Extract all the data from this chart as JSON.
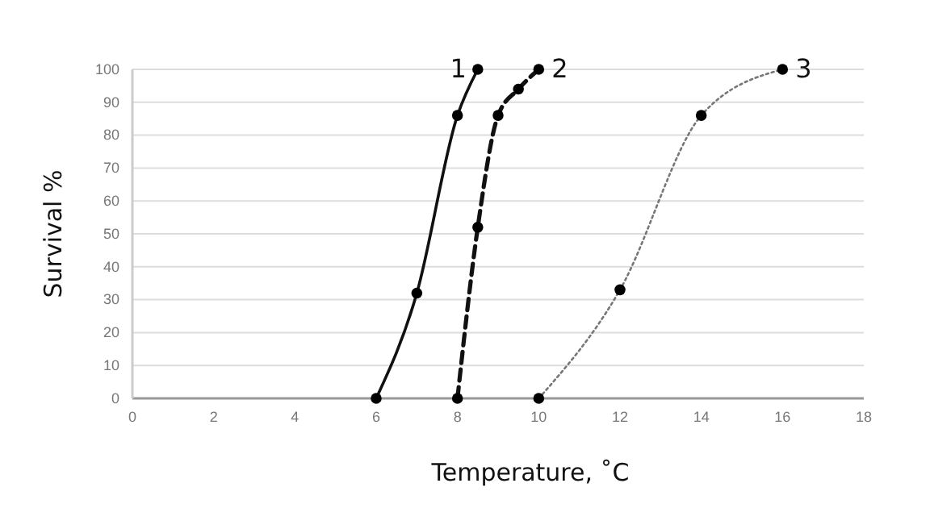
{
  "chart_data": {
    "type": "line",
    "xlabel": "Temperature, ˚C",
    "ylabel": "Survival %",
    "xlim": [
      0,
      18
    ],
    "xticks": [
      0,
      2,
      4,
      6,
      8,
      10,
      12,
      14,
      16,
      18
    ],
    "ylim": [
      0,
      100
    ],
    "yticks": [
      0,
      10,
      20,
      30,
      40,
      50,
      60,
      70,
      80,
      90,
      100
    ],
    "grid": "y",
    "marker": "circle",
    "series": [
      {
        "name": "1",
        "color": "#111111",
        "line_style": "solid",
        "x": [
          6,
          7,
          8,
          8.5
        ],
        "values": [
          0,
          32,
          86,
          100
        ]
      },
      {
        "name": "2",
        "color": "#111111",
        "line_style": "dashed",
        "x": [
          8,
          8.5,
          9,
          9.5,
          10
        ],
        "values": [
          0,
          52,
          86,
          94,
          100
        ]
      },
      {
        "name": "3",
        "color": "#777777",
        "line_style": "dotted",
        "x": [
          10,
          12,
          14,
          16
        ],
        "values": [
          0,
          33,
          86,
          100
        ]
      }
    ]
  }
}
